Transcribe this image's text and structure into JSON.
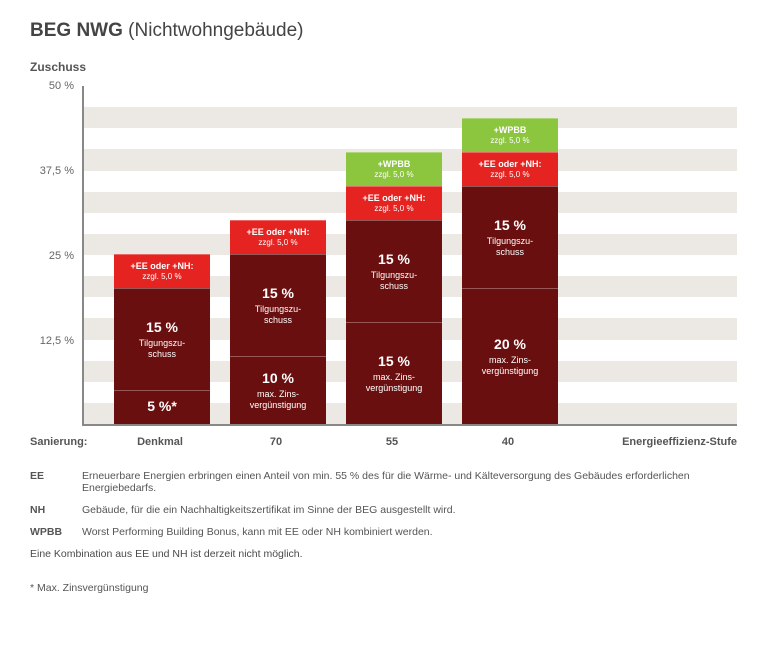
{
  "title_bold": "BEG NWG",
  "title_light": "(Nichtwohngebäude)",
  "y_label": "Zuschuss",
  "chart": {
    "type": "bar-stacked",
    "ymax": 50,
    "yticks": [
      50,
      37.5,
      25,
      12.5
    ],
    "ytick_labels": [
      "50 %",
      "37,5 %",
      "25 %",
      "12,5 %"
    ],
    "background_color": "#ffffff",
    "stripe_color": "#ece9e4",
    "axis_color": "#888888",
    "categories": [
      "Denkmal",
      "70",
      "55",
      "40"
    ],
    "x_lead": "Sanierung:",
    "x_trail": "Energieeffizienz-Stufe",
    "colors": {
      "dark": "#6a0f0f",
      "red": "#e52421",
      "green": "#8cc63f"
    },
    "bars": [
      {
        "cat": "Denkmal",
        "segments": [
          {
            "value": 5,
            "color": "dark",
            "big": "5 %*",
            "sub": ""
          },
          {
            "value": 15,
            "color": "dark",
            "big": "15 %",
            "sub": "Tilgungszu-\nschuss"
          },
          {
            "value": 5,
            "color": "red",
            "head": "+EE oder +NH:",
            "hsub": "zzgl. 5,0 %"
          }
        ]
      },
      {
        "cat": "70",
        "segments": [
          {
            "value": 10,
            "color": "dark",
            "big": "10 %",
            "sub": "max. Zins-\nvergünstigung"
          },
          {
            "value": 15,
            "color": "dark",
            "big": "15 %",
            "sub": "Tilgungszu-\nschuss"
          },
          {
            "value": 5,
            "color": "red",
            "head": "+EE oder +NH:",
            "hsub": "zzgl. 5,0 %"
          }
        ]
      },
      {
        "cat": "55",
        "segments": [
          {
            "value": 15,
            "color": "dark",
            "big": "15 %",
            "sub": "max. Zins-\nvergünstigung"
          },
          {
            "value": 15,
            "color": "dark",
            "big": "15 %",
            "sub": "Tilgungszu-\nschuss"
          },
          {
            "value": 5,
            "color": "red",
            "head": "+EE oder +NH:",
            "hsub": "zzgl. 5,0 %"
          },
          {
            "value": 5,
            "color": "green",
            "head": "+WPBB",
            "hsub": "zzgl. 5,0 %"
          }
        ]
      },
      {
        "cat": "40",
        "segments": [
          {
            "value": 20,
            "color": "dark",
            "big": "20 %",
            "sub": "max. Zins-\nvergünstigung"
          },
          {
            "value": 15,
            "color": "dark",
            "big": "15 %",
            "sub": "Tilgungszu-\nschuss"
          },
          {
            "value": 5,
            "color": "red",
            "head": "+EE oder +NH:",
            "hsub": "zzgl. 5,0 %"
          },
          {
            "value": 5,
            "color": "green",
            "head": "+WPBB",
            "hsub": "zzgl. 5,0 %"
          }
        ]
      }
    ]
  },
  "legend": [
    {
      "key": "EE",
      "text": "Erneuerbare Energien erbringen einen Anteil von min. 55 % des für die Wärme- und Kälteversorgung des Gebäudes erforderlichen Energiebedarfs."
    },
    {
      "key": "NH",
      "text": "Gebäude, für die ein Nachhaltigkeitszertifikat im Sinne der BEG ausgestellt wird."
    },
    {
      "key": "WPBB",
      "text": "Worst Performing Building Bonus, kann mit EE oder NH kombiniert werden."
    }
  ],
  "legend_note": "Eine Kombination aus EE und NH ist derzeit nicht möglich.",
  "footnote": "* Max. Zinsvergünstigung"
}
